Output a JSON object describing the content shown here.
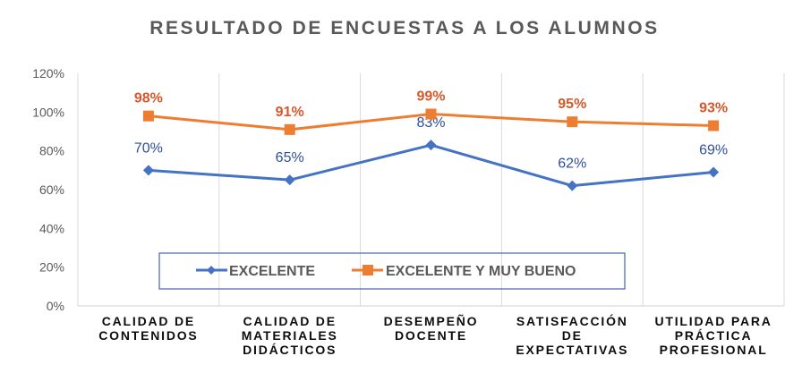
{
  "chart_data": {
    "type": "line",
    "title": "RESULTADO DE ENCUESTAS A LOS ALUMNOS",
    "xlabel": "",
    "ylabel": "",
    "ylim": [
      0,
      120
    ],
    "yticks": [
      "0%",
      "20%",
      "40%",
      "60%",
      "80%",
      "100%",
      "120%"
    ],
    "ytick_values": [
      0,
      20,
      40,
      60,
      80,
      100,
      120
    ],
    "grid": "vertical",
    "legend_position": "bottom-inside",
    "categories": [
      [
        "CALIDAD DE",
        "CONTENIDOS"
      ],
      [
        "CALIDAD DE",
        "MATERIALES",
        "DIDÁCTICOS"
      ],
      [
        "DESEMPEÑO",
        "DOCENTE"
      ],
      [
        "SATISFACCIÓN",
        "DE",
        "EXPECTATIVAS"
      ],
      [
        "UTILIDAD PARA",
        "PRÁCTICA",
        "PROFESIONAL"
      ]
    ],
    "series": [
      {
        "name": "EXCELENTE",
        "color": "#4472c4",
        "label_color": "#2f4f9a",
        "marker": "diamond",
        "values": [
          70,
          65,
          83,
          62,
          69
        ],
        "labels": [
          "70%",
          "65%",
          "83%",
          "62%",
          "69%"
        ]
      },
      {
        "name": "EXCELENTE Y MUY BUENO",
        "color": "#ed7d31",
        "label_color": "#d4582a",
        "marker": "square",
        "values": [
          98,
          91,
          99,
          95,
          93
        ],
        "labels": [
          "98%",
          "91%",
          "99%",
          "95%",
          "93%"
        ]
      }
    ]
  }
}
